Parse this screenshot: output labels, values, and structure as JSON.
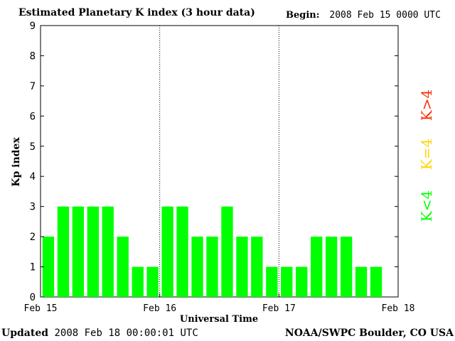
{
  "header": {
    "title": "Estimated Planetary K index (3 hour data)",
    "begin_label": "Begin:",
    "begin_value": "2008 Feb 15 0000 UTC"
  },
  "footer": {
    "updated_label": "Updated",
    "updated_value": "2008 Feb 18 00:00:01 UTC",
    "source": "NOAA/SWPC Boulder, CO USA"
  },
  "legend": {
    "high": {
      "label": "K>4",
      "color": "#ff2a00"
    },
    "mid": {
      "label": "K=4",
      "color": "#ffd400"
    },
    "low": {
      "label": "K<4",
      "color": "#00ff00"
    }
  },
  "chart_data": {
    "type": "bar",
    "title": "Estimated Planetary K index (3 hour data)",
    "xlabel": "Universal Time",
    "ylabel": "Kp index",
    "ylim": [
      0,
      9
    ],
    "yticks": [
      "0",
      "1",
      "2",
      "3",
      "4",
      "5",
      "6",
      "7",
      "8",
      "9"
    ],
    "xticks": [
      "Feb 15",
      "Feb 16",
      "Feb 17",
      "Feb 18"
    ],
    "day_separators": true,
    "values": [
      2,
      3,
      3,
      3,
      3,
      2,
      1,
      1,
      3,
      3,
      2,
      2,
      3,
      2,
      2,
      1,
      1,
      1,
      2,
      2,
      2,
      1,
      1
    ],
    "bar_color": "#00ff00"
  }
}
